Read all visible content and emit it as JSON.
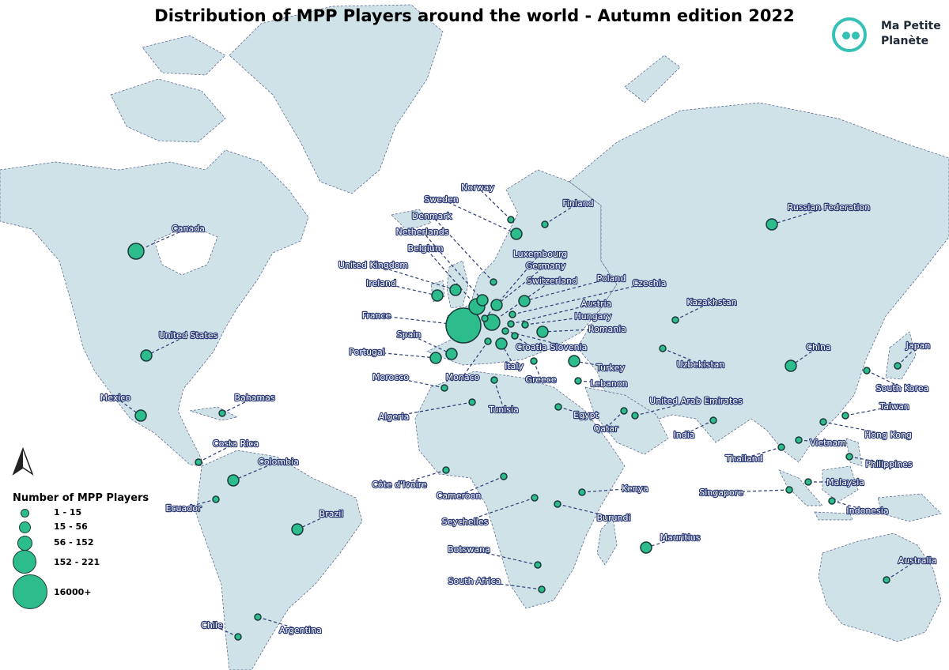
{
  "title": "Distribution of MPP Players around the world - Autumn edition 2022",
  "logo": {
    "line1": "Ma Petite",
    "line2": "Planète"
  },
  "legend": {
    "title": "Number of MPP Players",
    "classes": [
      "1 - 15",
      "15 - 56",
      "56 - 152",
      "152 - 221",
      "16000+"
    ]
  },
  "colors": {
    "land": "#cfe2e8",
    "ocean": "#ffffff",
    "bubble": "#2dbd8d",
    "label_halo": "#2b3a78",
    "logo": "#35c1b6"
  },
  "icons": {
    "north_arrow": "north-arrow-icon",
    "logo": "ma-petite-planete-logo"
  },
  "countries": [
    {
      "name": "Canada",
      "players_class": "56 - 152"
    },
    {
      "name": "United States",
      "players_class": "15 - 56"
    },
    {
      "name": "Mexico",
      "players_class": "15 - 56"
    },
    {
      "name": "Bahamas",
      "players_class": "1 - 15"
    },
    {
      "name": "Costa Rica",
      "players_class": "1 - 15"
    },
    {
      "name": "Colombia",
      "players_class": "15 - 56"
    },
    {
      "name": "Ecuador",
      "players_class": "1 - 15"
    },
    {
      "name": "Brazil",
      "players_class": "15 - 56"
    },
    {
      "name": "Chile",
      "players_class": "1 - 15"
    },
    {
      "name": "Argentina",
      "players_class": "1 - 15"
    },
    {
      "name": "Norway",
      "players_class": "1 - 15"
    },
    {
      "name": "Sweden",
      "players_class": "15 - 56"
    },
    {
      "name": "Finland",
      "players_class": "1 - 15"
    },
    {
      "name": "Denmark",
      "players_class": "1 - 15"
    },
    {
      "name": "Netherlands",
      "players_class": "15 - 56"
    },
    {
      "name": "Belgium",
      "players_class": "56 - 152"
    },
    {
      "name": "United Kingdom",
      "players_class": "15 - 56"
    },
    {
      "name": "Ireland",
      "players_class": "15 - 56"
    },
    {
      "name": "Luxembourg",
      "players_class": "1 - 15"
    },
    {
      "name": "Germany",
      "players_class": "15 - 56"
    },
    {
      "name": "Switzerland",
      "players_class": "56 - 152"
    },
    {
      "name": "Poland",
      "players_class": "15 - 56"
    },
    {
      "name": "Czechia",
      "players_class": "1 - 15"
    },
    {
      "name": "Austria",
      "players_class": "1 - 15"
    },
    {
      "name": "Hungary",
      "players_class": "1 - 15"
    },
    {
      "name": "Romania",
      "players_class": "15 - 56"
    },
    {
      "name": "France",
      "players_class": "16000+"
    },
    {
      "name": "Spain",
      "players_class": "15 - 56"
    },
    {
      "name": "Portugal",
      "players_class": "15 - 56"
    },
    {
      "name": "Croatia",
      "players_class": "1 - 15"
    },
    {
      "name": "Slovenia",
      "players_class": "1 - 15"
    },
    {
      "name": "Italy",
      "players_class": "15 - 56"
    },
    {
      "name": "Monaco",
      "players_class": "1 - 15"
    },
    {
      "name": "Greece",
      "players_class": "1 - 15"
    },
    {
      "name": "Turkey",
      "players_class": "15 - 56"
    },
    {
      "name": "Lebanon",
      "players_class": "1 - 15"
    },
    {
      "name": "Morocco",
      "players_class": "1 - 15"
    },
    {
      "name": "Algeria",
      "players_class": "1 - 15"
    },
    {
      "name": "Tunisia",
      "players_class": "1 - 15"
    },
    {
      "name": "Egypt",
      "players_class": "1 - 15"
    },
    {
      "name": "Qatar",
      "players_class": "1 - 15"
    },
    {
      "name": "United Arab Emirates",
      "players_class": "1 - 15"
    },
    {
      "name": "Russian Federation",
      "players_class": "15 - 56"
    },
    {
      "name": "Kazakhstan",
      "players_class": "1 - 15"
    },
    {
      "name": "Uzbekistan",
      "players_class": "1 - 15"
    },
    {
      "name": "China",
      "players_class": "15 - 56"
    },
    {
      "name": "Japan",
      "players_class": "1 - 15"
    },
    {
      "name": "South Korea",
      "players_class": "1 - 15"
    },
    {
      "name": "Taiwan",
      "players_class": "1 - 15"
    },
    {
      "name": "Hong Kong",
      "players_class": "1 - 15"
    },
    {
      "name": "India",
      "players_class": "1 - 15"
    },
    {
      "name": "Thailand",
      "players_class": "1 - 15"
    },
    {
      "name": "Vietnam",
      "players_class": "1 - 15"
    },
    {
      "name": "Philippines",
      "players_class": "1 - 15"
    },
    {
      "name": "Malaysia",
      "players_class": "1 - 15"
    },
    {
      "name": "Singapore",
      "players_class": "1 - 15"
    },
    {
      "name": "Indonesia",
      "players_class": "1 - 15"
    },
    {
      "name": "Australia",
      "players_class": "1 - 15"
    },
    {
      "name": "Côte d'Ivoire",
      "players_class": "1 - 15"
    },
    {
      "name": "Cameroon",
      "players_class": "1 - 15"
    },
    {
      "name": "Kenya",
      "players_class": "1 - 15"
    },
    {
      "name": "Seychelles",
      "players_class": "1 - 15"
    },
    {
      "name": "Burundi",
      "players_class": "1 - 15"
    },
    {
      "name": "Botswana",
      "players_class": "1 - 15"
    },
    {
      "name": "South Africa",
      "players_class": "1 - 15"
    },
    {
      "name": "Mauritius",
      "players_class": "15 - 56"
    }
  ]
}
